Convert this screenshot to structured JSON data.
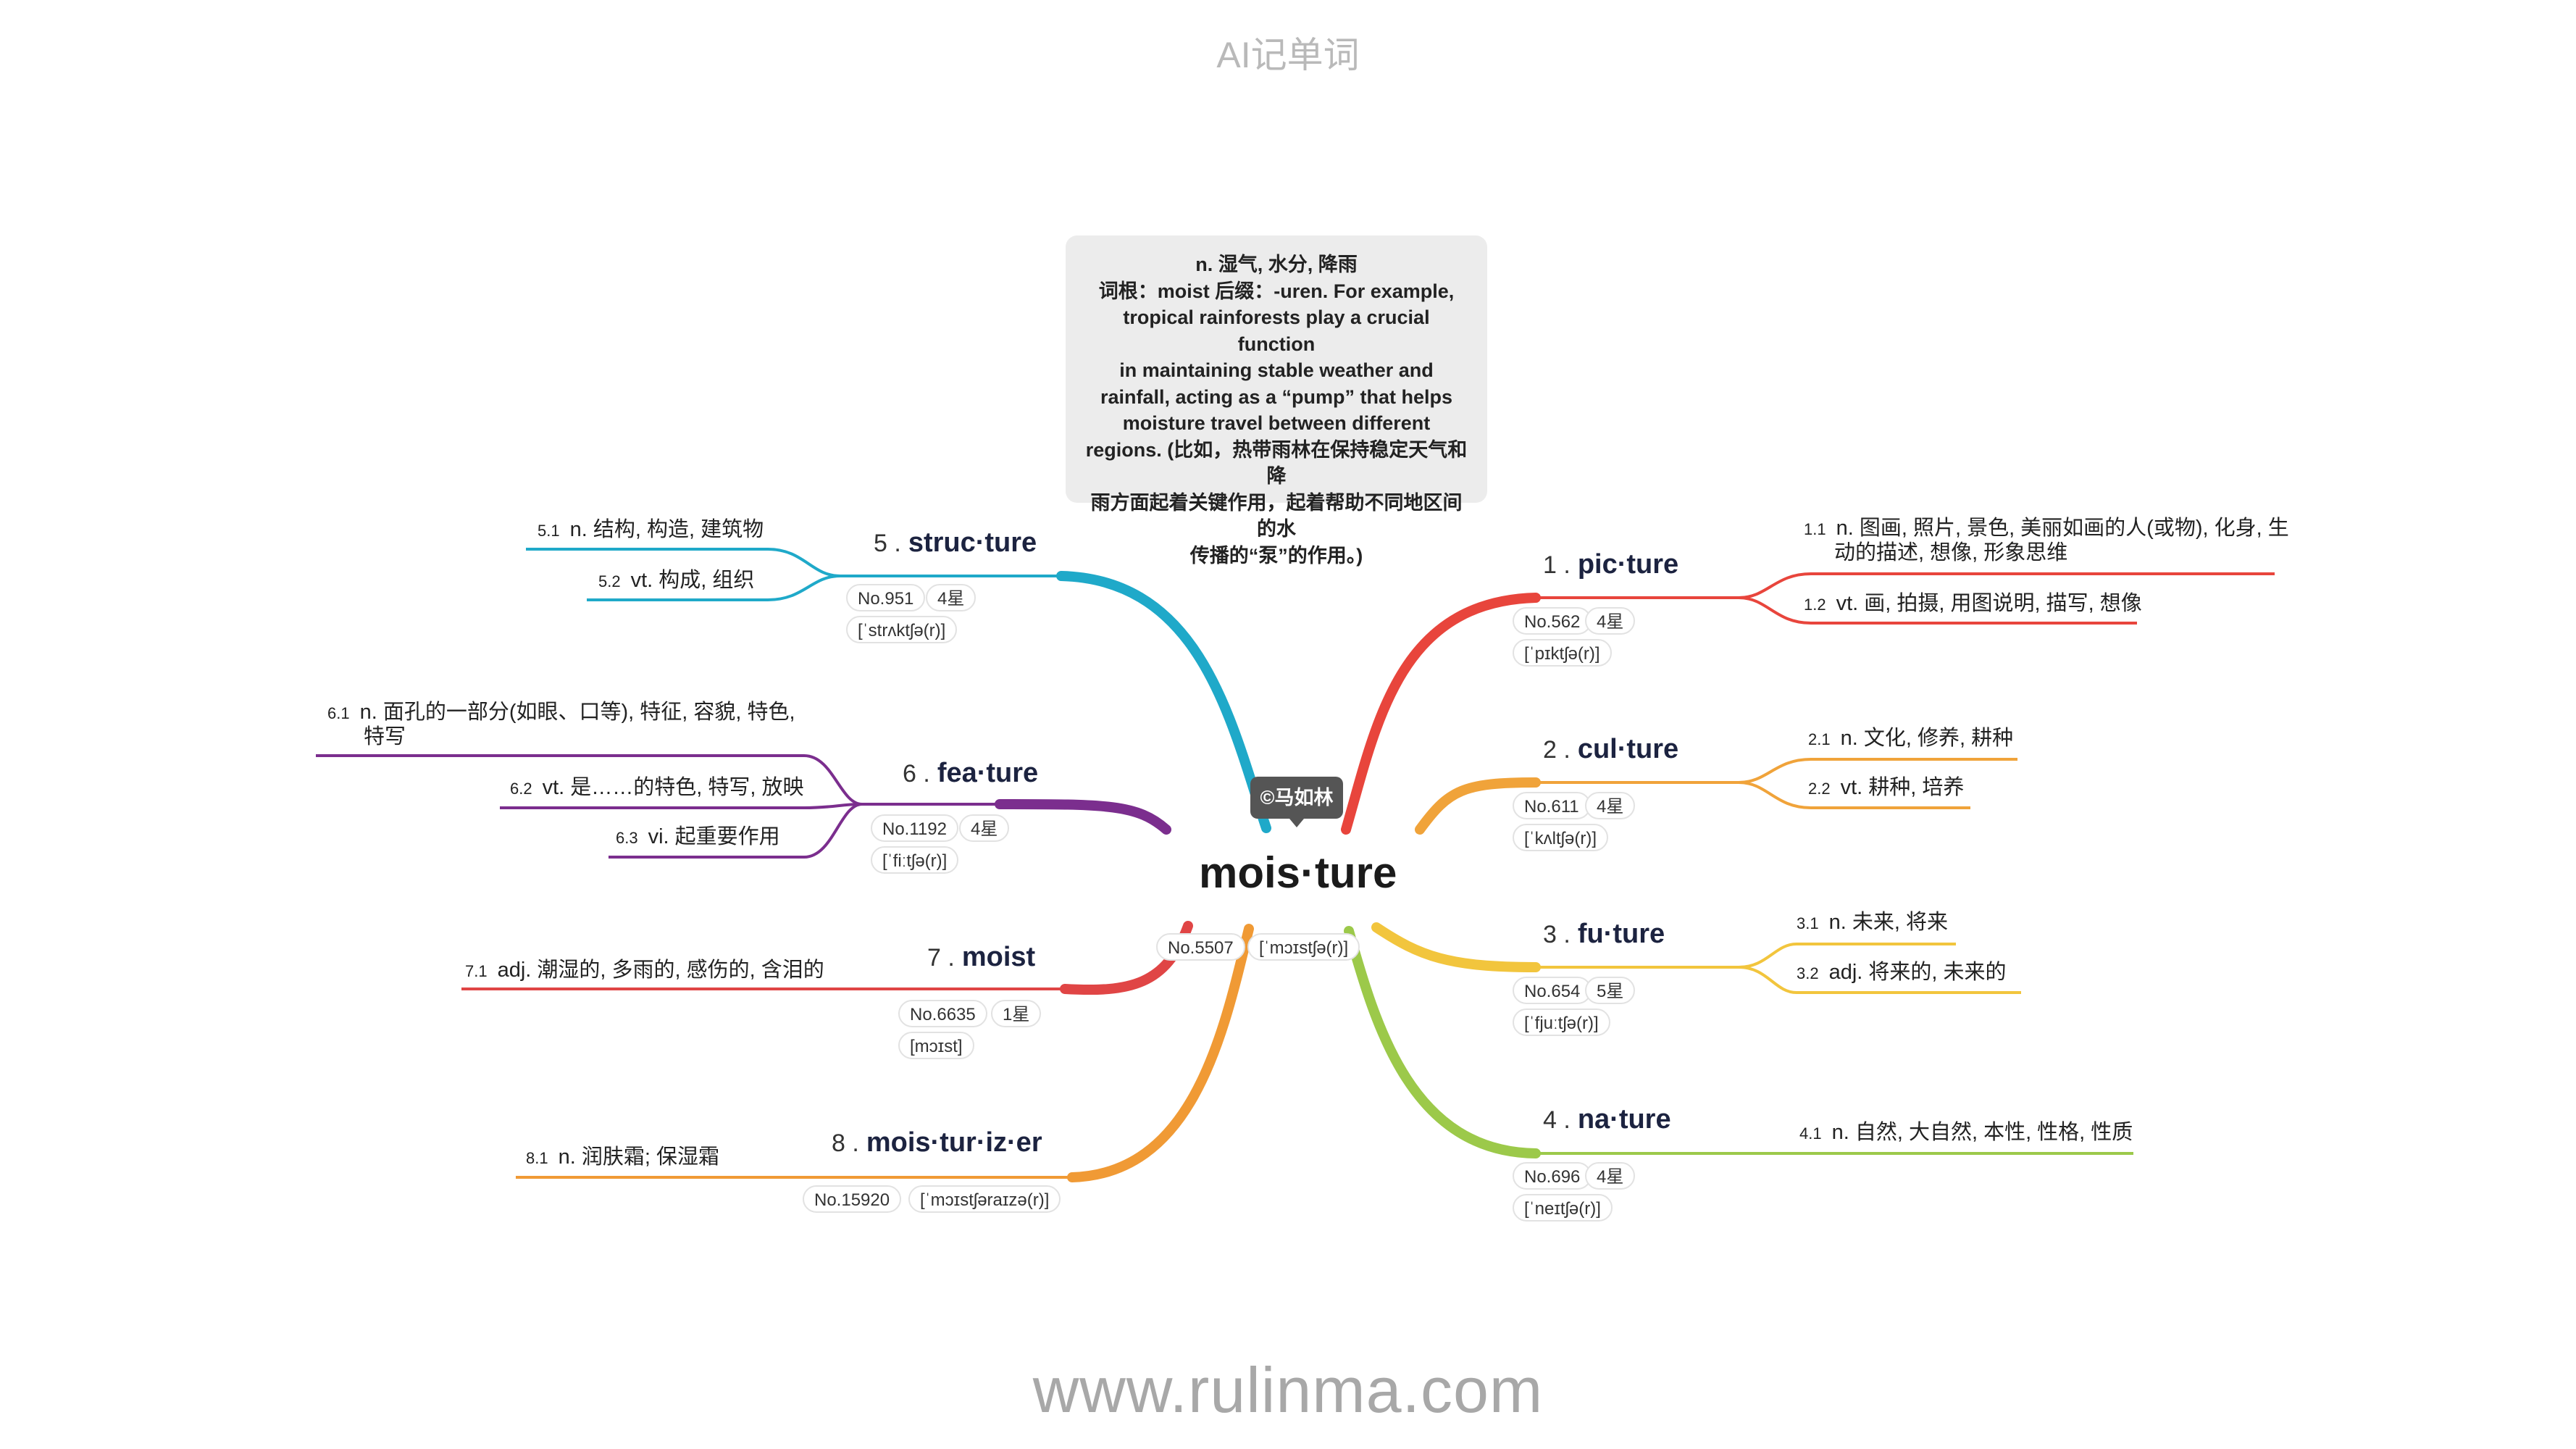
{
  "app_title": "AI记单词",
  "footer_url": "www.rulinma.com",
  "note": {
    "lines": [
      "n. 湿气, 水分, 降雨",
      "词根：moist 后缀：-uren. For example,",
      "tropical rainforests play a crucial function",
      "in maintaining stable weather and",
      "rainfall, acting as a “pump” that helps",
      "moisture travel between different",
      "regions. (比如，热带雨林在保持稳定天气和降",
      "雨方面起着关键作用，起着帮助不同地区间的水",
      "传播的“泵”的作用。)"
    ]
  },
  "center": {
    "word": "mois·ture",
    "author": "©马如林",
    "no": "No.5507",
    "phonetic": "[ˈmɔɪstʃə(r)]"
  },
  "colors": {
    "c1": "#e8453c",
    "c2": "#f0a33a",
    "c3": "#f2c53d",
    "c4": "#9cc94a",
    "c5": "#1fa9c9",
    "c6": "#7b2e8e",
    "c7": "#e04545",
    "c8": "#f09a35"
  },
  "branches": [
    {
      "num": "1 .",
      "word": "pic·ture",
      "no": "No.562",
      "stars": "4星",
      "phonetic": "[ˈpɪktʃə(r)]",
      "defs": [
        {
          "n": "1.1",
          "line1": "n. 图画, 照片, 景色, 美丽如画的人(或物), 化身, 生",
          "line2": "动的描述, 想像, 形象思维"
        },
        {
          "n": "1.2",
          "line1": "vt. 画, 拍摄, 用图说明, 描写, 想像"
        }
      ]
    },
    {
      "num": "2 .",
      "word": "cul·ture",
      "no": "No.611",
      "stars": "4星",
      "phonetic": "[ˈkʌltʃə(r)]",
      "defs": [
        {
          "n": "2.1",
          "line1": "n. 文化, 修养, 耕种"
        },
        {
          "n": "2.2",
          "line1": "vt. 耕种, 培养"
        }
      ]
    },
    {
      "num": "3 .",
      "word": "fu·ture",
      "no": "No.654",
      "stars": "5星",
      "phonetic": "[ˈfjuːtʃə(r)]",
      "defs": [
        {
          "n": "3.1",
          "line1": "n. 未来, 将来"
        },
        {
          "n": "3.2",
          "line1": "adj. 将来的, 未来的"
        }
      ]
    },
    {
      "num": "4 .",
      "word": "na·ture",
      "no": "No.696",
      "stars": "4星",
      "phonetic": "[ˈneɪtʃə(r)]",
      "defs": [
        {
          "n": "4.1",
          "line1": "n. 自然, 大自然, 本性, 性格, 性质"
        }
      ]
    },
    {
      "num": "5 .",
      "word": "struc·ture",
      "no": "No.951",
      "stars": "4星",
      "phonetic": "[ˈstrʌktʃə(r)]",
      "defs": [
        {
          "n": "5.1",
          "line1": "n. 结构, 构造, 建筑物"
        },
        {
          "n": "5.2",
          "line1": "vt. 构成, 组织"
        }
      ]
    },
    {
      "num": "6 .",
      "word": "fea·ture",
      "no": "No.1192",
      "stars": "4星",
      "phonetic": "[ˈfiːtʃə(r)]",
      "defs": [
        {
          "n": "6.1",
          "line1": "n. 面孔的一部分(如眼、口等), 特征, 容貌, 特色,",
          "line2": "特写"
        },
        {
          "n": "6.2",
          "line1": "vt. 是……的特色, 特写, 放映"
        },
        {
          "n": "6.3",
          "line1": "vi. 起重要作用"
        }
      ]
    },
    {
      "num": "7 .",
      "word": "moist",
      "no": "No.6635",
      "stars": "1星",
      "phonetic": "[mɔɪst]",
      "defs": [
        {
          "n": "7.1",
          "line1": "adj. 潮湿的, 多雨的, 感伤的, 含泪的"
        }
      ]
    },
    {
      "num": "8 .",
      "word": "mois·tur·iz·er",
      "no": "No.15920",
      "phonetic": "[ˈmɔɪstʃəraɪzə(r)]",
      "defs": [
        {
          "n": "8.1",
          "line1": "n. 润肤霜; 保湿霜"
        }
      ]
    }
  ]
}
